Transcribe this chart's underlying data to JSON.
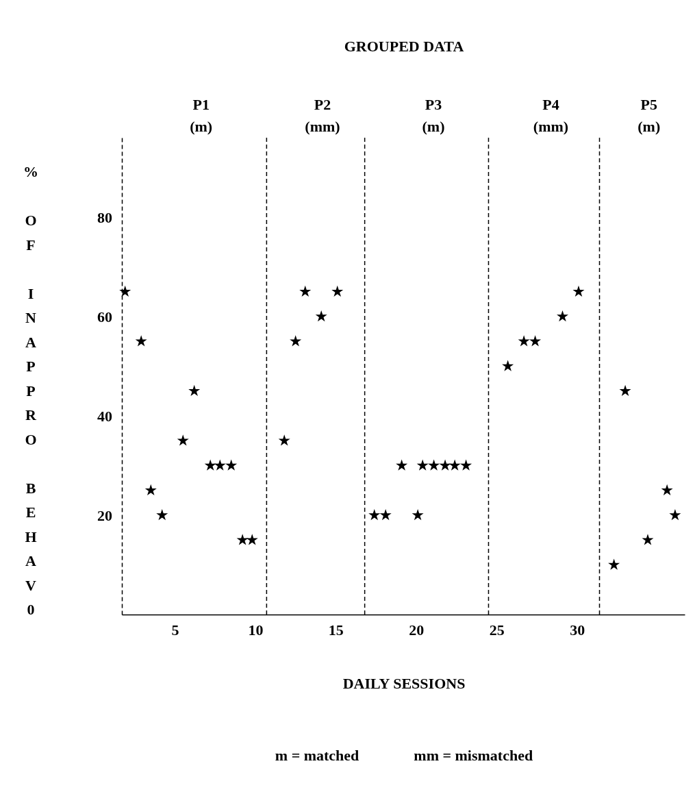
{
  "chart_data": {
    "type": "scatter",
    "title": "GROUPED DATA",
    "xlabel": "DAILY SESSIONS",
    "ylabel": "% OF INAPPRO BEHAV0",
    "x": [
      1.9,
      2.9,
      3.5,
      4.2,
      5.5,
      6.2,
      7.2,
      7.8,
      8.5,
      9.2,
      9.8,
      11.8,
      12.5,
      13.1,
      14.1,
      15.1,
      17.4,
      18.1,
      19.1,
      20.1,
      20.4,
      21.1,
      21.8,
      22.4,
      23.1,
      25.7,
      26.7,
      27.4,
      29.1,
      30.1,
      32.3,
      33.0,
      34.4,
      35.6,
      36.1
    ],
    "series": [
      {
        "color": "#000000",
        "values": [
          65,
          55,
          25,
          20,
          35,
          45,
          30,
          30,
          30,
          15,
          15,
          35,
          55,
          65,
          60,
          65,
          20,
          20,
          30,
          20,
          30,
          30,
          30,
          30,
          30,
          50,
          55,
          55,
          60,
          65,
          10,
          45,
          15,
          25,
          20
        ]
      }
    ],
    "marker": "star",
    "xlim": [
      1.7,
      36.7
    ],
    "xticks": [
      5,
      10,
      15,
      20,
      25,
      30
    ],
    "ylim": [
      0,
      96
    ],
    "yticks": [
      20,
      40,
      60,
      80
    ],
    "ref_lines": [
      {
        "axis": "x",
        "value": 10.7,
        "line_style": "dashed"
      },
      {
        "axis": "x",
        "value": 16.8,
        "line_style": "dashed"
      },
      {
        "axis": "x",
        "value": 24.5,
        "line_style": "dashed"
      },
      {
        "axis": "x",
        "value": 31.4,
        "line_style": "dashed"
      }
    ],
    "annotations": [
      "P1 (m)",
      "P2 (mm)",
      "P3 (m)",
      "P4 (mm)",
      "P5 (m)",
      "m = matched",
      "mm = mismatched"
    ],
    "grid": false
  }
}
